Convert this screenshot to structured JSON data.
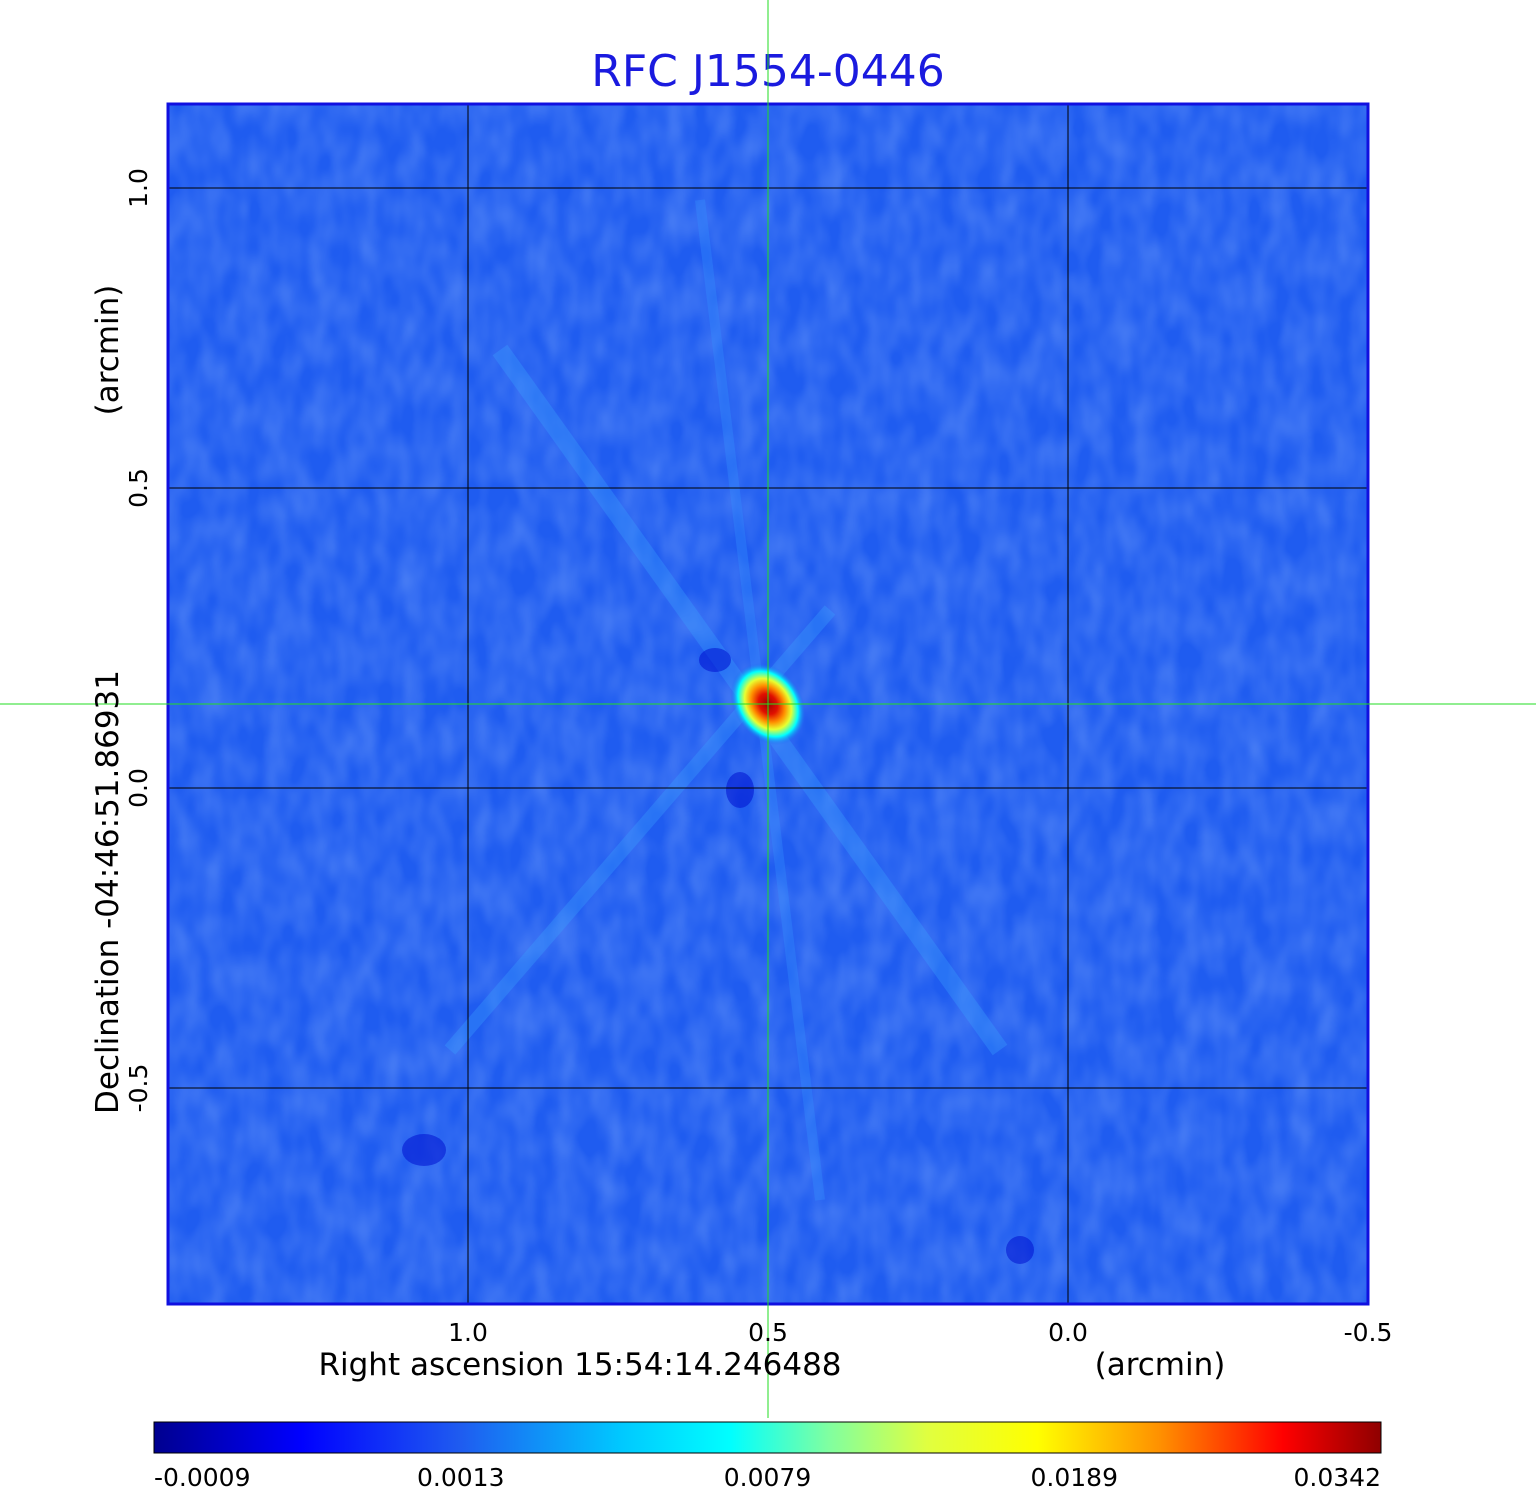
{
  "chart_data": {
    "type": "heatmap",
    "title": "RFC J1554-0446",
    "xlabel": "Right ascension  15:54:14.246488",
    "xunit": "(arcmin)",
    "ylabel": "Declination  -04:46:51.86931",
    "yunit": "(arcmin)",
    "xlim": [
      1.5,
      -0.5
    ],
    "ylim": [
      -0.86,
      1.14
    ],
    "x_ticks": [
      {
        "value": 1.0,
        "label": "1.0"
      },
      {
        "value": 0.5,
        "label": "0.5"
      },
      {
        "value": 0.0,
        "label": "0.0"
      },
      {
        "value": -0.5,
        "label": "-0.5"
      }
    ],
    "y_ticks": [
      {
        "value": 1.0,
        "label": "1.0"
      },
      {
        "value": 0.5,
        "label": "0.5"
      },
      {
        "value": 0.0,
        "label": "0.0"
      },
      {
        "value": -0.5,
        "label": "-0.5"
      }
    ],
    "grid": true,
    "peak": {
      "x": 0.5,
      "y": 0.14,
      "value": 0.0342
    },
    "crosshair": {
      "x": 0.5,
      "y": 0.14,
      "color": "#22dd22"
    },
    "colorbar": {
      "position": "bottom",
      "colormap": "jet",
      "tick_labels": [
        "-0.0009",
        "0.0013",
        "0.0079",
        "0.0189",
        "0.0342"
      ]
    },
    "colors": {
      "title": "#1a1adf",
      "frame": "#1010e0",
      "background_level": "#1f5cf0"
    }
  }
}
